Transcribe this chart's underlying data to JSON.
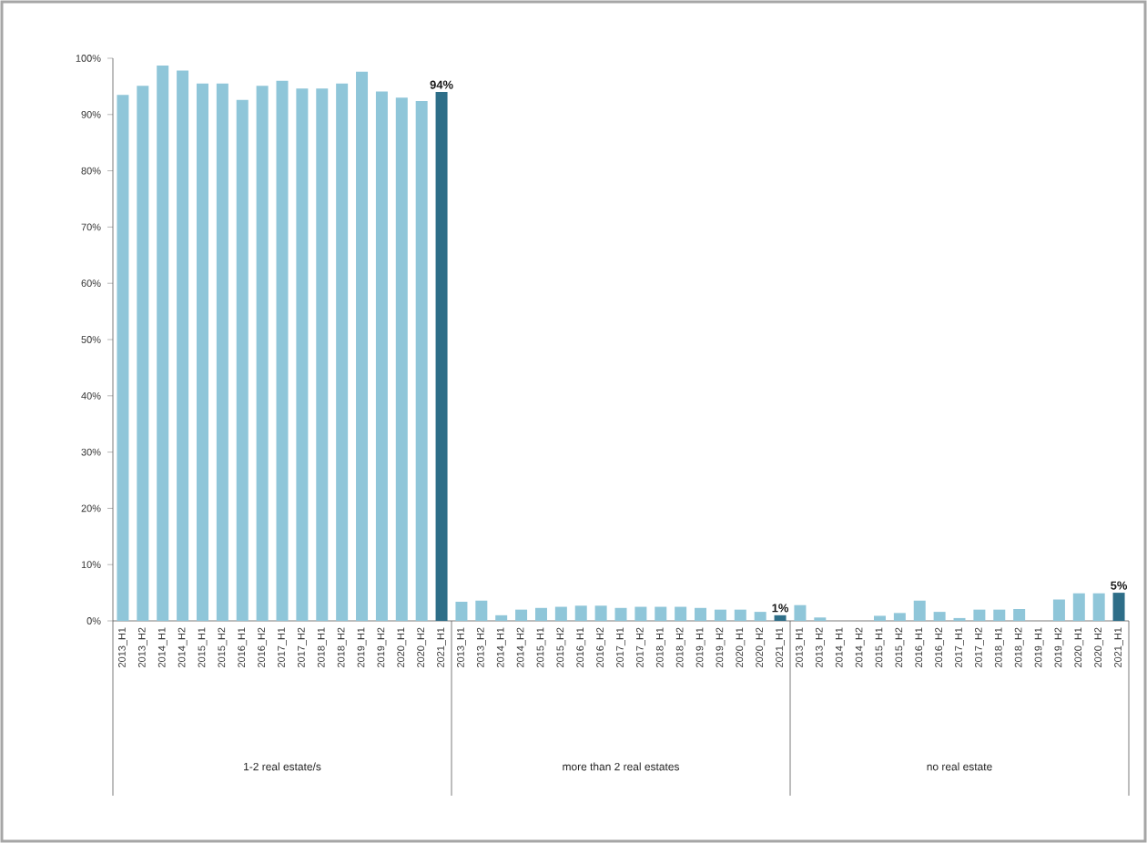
{
  "chart_data": {
    "type": "bar",
    "categories": [
      "2013_H1",
      "2013_H2",
      "2014_H1",
      "2014_H2",
      "2015_H1",
      "2015_H2",
      "2016_H1",
      "2016_H2",
      "2017_H1",
      "2017_H2",
      "2018_H1",
      "2018_H2",
      "2019_H1",
      "2019_H2",
      "2020_H1",
      "2020_H2",
      "2021_H1",
      "2013_H1",
      "2013_H2",
      "2014_H1",
      "2014_H2",
      "2015_H1",
      "2015_H2",
      "2016_H1",
      "2016_H2",
      "2017_H1",
      "2017_H2",
      "2018_H1",
      "2018_H2",
      "2019_H1",
      "2019_H2",
      "2020_H1",
      "2020_H2",
      "2021_H1",
      "2013_H1",
      "2013_H2",
      "2014_H1",
      "2014_H2",
      "2015_H1",
      "2015_H2",
      "2016_H1",
      "2016_H2",
      "2017_H1",
      "2017_H2",
      "2018_H1",
      "2018_H2",
      "2019_H1",
      "2019_H2",
      "2020_H1",
      "2020_H2",
      "2021_H1"
    ],
    "values": [
      93.5,
      95.1,
      98.7,
      97.8,
      95.5,
      95.5,
      92.6,
      95.1,
      96,
      94.6,
      94.6,
      95.5,
      97.6,
      94.1,
      93,
      92.4,
      94,
      3.4,
      3.6,
      1,
      2,
      2.3,
      2.5,
      2.7,
      2.7,
      2.3,
      2.5,
      2.5,
      2.5,
      2.3,
      2,
      2,
      1.6,
      1,
      2.8,
      0.6,
      0,
      0,
      0.9,
      1.4,
      3.6,
      1.6,
      0.5,
      2,
      2,
      2.1,
      0,
      3.8,
      4.9,
      4.9,
      5
    ],
    "colors": [
      "#8fc6d9",
      "#8fc6d9",
      "#8fc6d9",
      "#8fc6d9",
      "#8fc6d9",
      "#8fc6d9",
      "#8fc6d9",
      "#8fc6d9",
      "#8fc6d9",
      "#8fc6d9",
      "#8fc6d9",
      "#8fc6d9",
      "#8fc6d9",
      "#8fc6d9",
      "#8fc6d9",
      "#8fc6d9",
      "#2e6e88",
      "#8fc6d9",
      "#8fc6d9",
      "#8fc6d9",
      "#8fc6d9",
      "#8fc6d9",
      "#8fc6d9",
      "#8fc6d9",
      "#8fc6d9",
      "#8fc6d9",
      "#8fc6d9",
      "#8fc6d9",
      "#8fc6d9",
      "#8fc6d9",
      "#8fc6d9",
      "#8fc6d9",
      "#8fc6d9",
      "#2e6e88",
      "#8fc6d9",
      "#8fc6d9",
      "#8fc6d9",
      "#8fc6d9",
      "#8fc6d9",
      "#8fc6d9",
      "#8fc6d9",
      "#8fc6d9",
      "#8fc6d9",
      "#8fc6d9",
      "#8fc6d9",
      "#8fc6d9",
      "#8fc6d9",
      "#8fc6d9",
      "#8fc6d9",
      "#8fc6d9",
      "#2e6e88"
    ],
    "value_labels": [
      null,
      null,
      null,
      null,
      null,
      null,
      null,
      null,
      null,
      null,
      null,
      null,
      null,
      null,
      null,
      null,
      "94%",
      null,
      null,
      null,
      null,
      null,
      null,
      null,
      null,
      null,
      null,
      null,
      null,
      null,
      null,
      null,
      null,
      "1%",
      null,
      null,
      null,
      null,
      null,
      null,
      null,
      null,
      null,
      null,
      null,
      null,
      null,
      null,
      null,
      null,
      "5%"
    ],
    "ylim": [
      0,
      100
    ],
    "yticks": [
      {
        "value": 0,
        "label": "0%"
      },
      {
        "value": 10,
        "label": "10%"
      },
      {
        "value": 20,
        "label": "20%"
      },
      {
        "value": 30,
        "label": "30%"
      },
      {
        "value": 40,
        "label": "40%"
      },
      {
        "value": 50,
        "label": "50%"
      },
      {
        "value": 60,
        "label": "60%"
      },
      {
        "value": 70,
        "label": "70%"
      },
      {
        "value": 80,
        "label": "80%"
      },
      {
        "value": 90,
        "label": "90%"
      },
      {
        "value": 100,
        "label": "100%"
      }
    ],
    "annotations": [
      "1-2 real estate/s",
      "more than 2 real estates",
      "no real estate"
    ],
    "grid": false
  }
}
